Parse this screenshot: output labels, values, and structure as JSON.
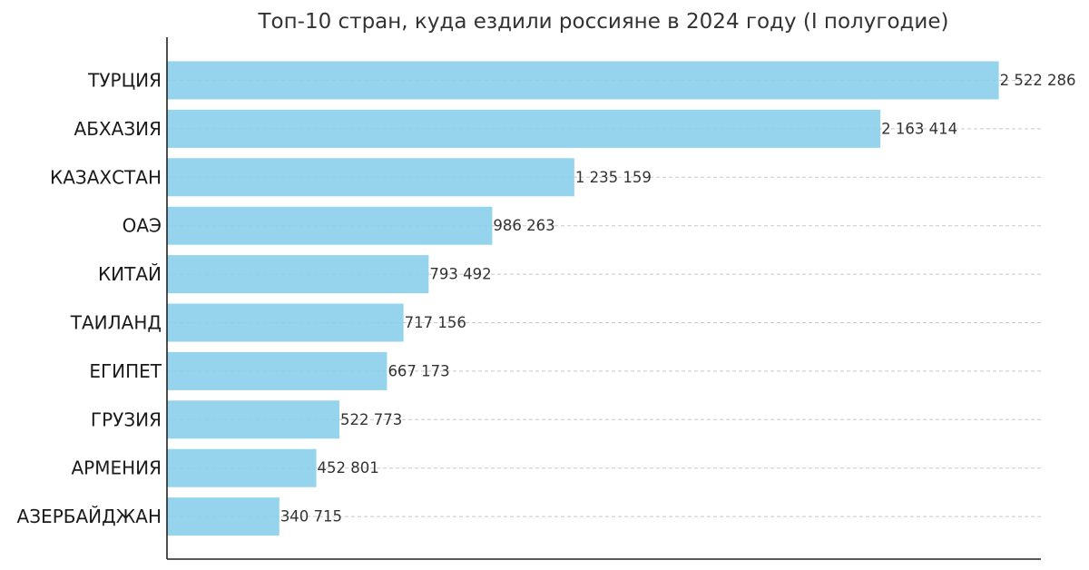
{
  "chart_data": {
    "type": "bar",
    "orientation": "horizontal",
    "title": "Топ-10 стран, куда ездили россияне в 2024 году (I полугодие)",
    "xlabel": "",
    "ylabel": "",
    "categories": [
      "ТУРЦИЯ",
      "АБХАЗИЯ",
      "КАЗАХСТАН",
      "ОАЭ",
      "КИТАЙ",
      "ТАИЛАНД",
      "ЕГИПЕТ",
      "ГРУЗИЯ",
      "АРМЕНИЯ",
      "АЗЕРБАЙДЖАН"
    ],
    "values": [
      2522286,
      2163414,
      1235159,
      986263,
      793492,
      717156,
      667173,
      522773,
      452801,
      340715
    ],
    "value_labels": [
      "2 522 286",
      "2 163 414",
      "1 235 159",
      "986 263",
      "793 492",
      "717 156",
      "667 173",
      "522 773",
      "452 801",
      "340 715"
    ],
    "xlim": [
      0,
      2650000
    ],
    "grid": "horizontal-dashed",
    "legend": "none",
    "colors": {
      "bar": "#87CEEB",
      "grid": "#c8c8c8",
      "axis": "#222222",
      "text": "#333333"
    }
  }
}
